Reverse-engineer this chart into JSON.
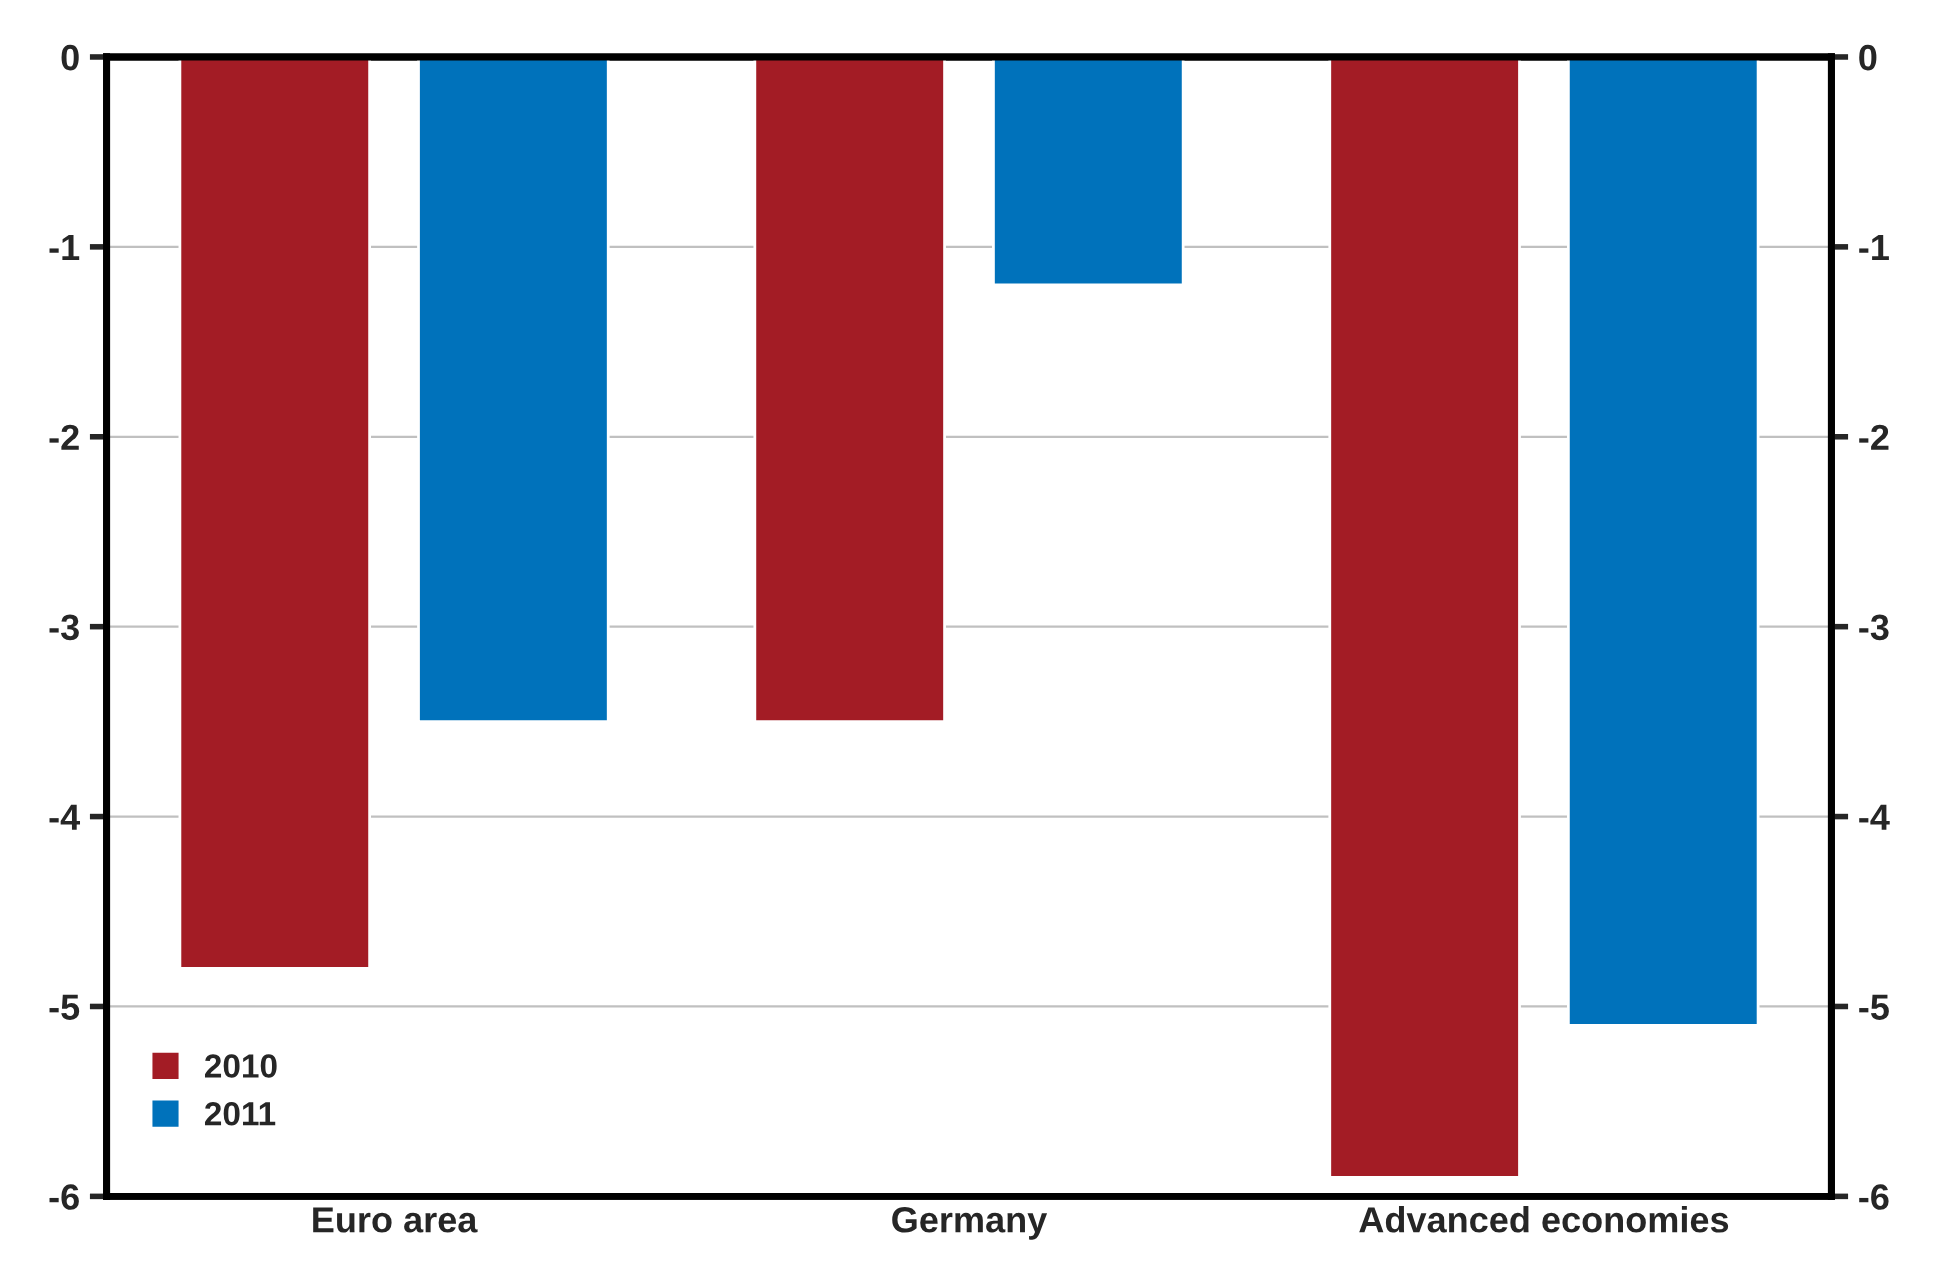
{
  "chart_data": {
    "type": "bar",
    "categories": [
      "Euro area",
      "Germany",
      "Advanced economies"
    ],
    "series": [
      {
        "name": "2010",
        "color": "#a31c25",
        "values": [
          -4.8,
          -3.5,
          -5.9
        ]
      },
      {
        "name": "2011",
        "color": "#0072bb",
        "values": [
          -3.5,
          -1.2,
          -5.1
        ]
      }
    ],
    "ylim": [
      -6,
      0
    ],
    "yticks": [
      -6,
      -5,
      -4,
      -3,
      -2,
      -1,
      0
    ],
    "y2lim": [
      -6,
      0
    ],
    "y2ticks": [
      -6,
      -5,
      -4,
      -3,
      -2,
      -1,
      0
    ],
    "grid": true,
    "legend": "bottom left"
  }
}
